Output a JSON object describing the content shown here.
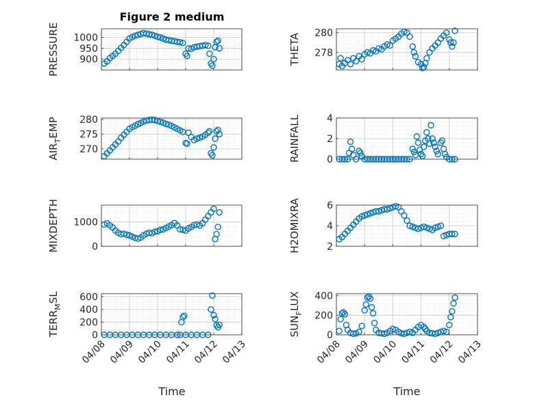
{
  "figure": {
    "title": "Figure 2 medium",
    "xlabel": "Time",
    "marker_color": "#0072BD",
    "x_tick_labels": [
      "04/08",
      "04/09",
      "04/10",
      "04/11",
      "04/12",
      "04/13"
    ]
  },
  "chart_data": [
    {
      "type": "scatter",
      "ylabel": "PRESSURE",
      "ylabel_sub": "",
      "ylim": [
        850,
        1040
      ],
      "yticks": [
        900,
        950,
        1000
      ],
      "xlim": [
        0,
        5
      ],
      "x": [
        0.1,
        0.2,
        0.3,
        0.4,
        0.5,
        0.6,
        0.7,
        0.8,
        0.9,
        1.0,
        1.1,
        1.2,
        1.3,
        1.4,
        1.5,
        1.6,
        1.7,
        1.8,
        1.9,
        2.0,
        2.1,
        2.2,
        2.3,
        2.4,
        2.5,
        2.6,
        2.7,
        2.8,
        2.9,
        3.0,
        3.05,
        3.1,
        3.2,
        3.3,
        3.4,
        3.5,
        3.6,
        3.7,
        3.8,
        3.85,
        3.9,
        3.95,
        4.0,
        4.05,
        4.1,
        4.15,
        4.2
      ],
      "y": [
        880,
        890,
        905,
        915,
        925,
        938,
        952,
        965,
        980,
        995,
        1002,
        1008,
        1012,
        1016,
        1020,
        1018,
        1015,
        1012,
        1008,
        1003,
        1000,
        995,
        990,
        988,
        985,
        983,
        980,
        978,
        975,
        925,
        915,
        950,
        948,
        955,
        958,
        960,
        962,
        965,
        962,
        925,
        880,
        870,
        900,
        955,
        980,
        985,
        950
      ]
    },
    {
      "type": "scatter",
      "ylabel": "THETA",
      "ylabel_sub": "",
      "ylim": [
        276.2,
        280.4
      ],
      "yticks": [
        278,
        280
      ],
      "xlim": [
        0,
        5
      ],
      "x": [
        0.1,
        0.15,
        0.2,
        0.3,
        0.4,
        0.5,
        0.6,
        0.7,
        0.8,
        0.9,
        1.0,
        1.1,
        1.2,
        1.3,
        1.4,
        1.5,
        1.6,
        1.7,
        1.8,
        1.9,
        2.0,
        2.1,
        2.2,
        2.3,
        2.4,
        2.5,
        2.6,
        2.7,
        2.75,
        2.8,
        2.9,
        3.0,
        3.05,
        3.1,
        3.15,
        3.2,
        3.3,
        3.4,
        3.5,
        3.6,
        3.7,
        3.8,
        3.9,
        4.0,
        4.05,
        4.1,
        4.15,
        4.2
      ],
      "y": [
        276.8,
        277.4,
        276.6,
        276.9,
        277.2,
        276.8,
        277.4,
        277.1,
        277.6,
        277.3,
        277.8,
        278.0,
        277.9,
        278.2,
        278.1,
        278.4,
        278.3,
        278.6,
        278.8,
        278.7,
        279.2,
        279.4,
        279.6,
        279.9,
        280.1,
        280.0,
        279.6,
        278.6,
        278.0,
        277.6,
        277.0,
        276.8,
        276.4,
        276.5,
        276.9,
        277.4,
        278.0,
        278.4,
        278.7,
        279.0,
        279.4,
        279.7,
        280.0,
        279.3,
        279.0,
        278.6,
        279.0,
        280.2
      ]
    },
    {
      "type": "scatter",
      "ylabel": "AIR",
      "ylabel_sub": "T",
      "ylabel_tail": "EMP",
      "ylim": [
        266.5,
        280.5
      ],
      "yticks": [
        270,
        275,
        280
      ],
      "xlim": [
        0,
        5
      ],
      "x": [
        0.1,
        0.2,
        0.3,
        0.4,
        0.5,
        0.6,
        0.7,
        0.8,
        0.9,
        1.0,
        1.1,
        1.2,
        1.3,
        1.4,
        1.5,
        1.6,
        1.7,
        1.8,
        1.9,
        2.0,
        2.1,
        2.2,
        2.3,
        2.4,
        2.5,
        2.6,
        2.7,
        2.8,
        2.9,
        3.0,
        3.05,
        3.1,
        3.2,
        3.3,
        3.4,
        3.5,
        3.6,
        3.7,
        3.8,
        3.85,
        3.9,
        3.95,
        4.0,
        4.05,
        4.1,
        4.15,
        4.2
      ],
      "y": [
        267.5,
        268.5,
        269.5,
        270.5,
        271.5,
        272.5,
        273.8,
        274.8,
        275.8,
        276.8,
        277.4,
        277.9,
        278.4,
        278.8,
        279.3,
        279.6,
        279.8,
        279.9,
        279.8,
        279.5,
        279.2,
        278.9,
        278.5,
        278.2,
        277.8,
        277.3,
        276.8,
        276.3,
        275.8,
        272.0,
        271.8,
        275.5,
        274.0,
        273.0,
        273.5,
        273.8,
        274.2,
        274.8,
        275.5,
        276.0,
        268.5,
        267.8,
        270.5,
        273.5,
        276.0,
        276.5,
        275.0
      ]
    },
    {
      "type": "scatter",
      "ylabel": "RAINFALL",
      "ylabel_sub": "",
      "ylim": [
        0,
        4
      ],
      "yticks": [
        0,
        2,
        4
      ],
      "xlim": [
        0,
        5
      ],
      "x": [
        0.1,
        0.2,
        0.3,
        0.4,
        0.45,
        0.5,
        0.55,
        0.6,
        0.7,
        0.8,
        0.85,
        0.9,
        1.0,
        1.1,
        1.2,
        1.3,
        1.4,
        1.5,
        1.6,
        1.7,
        1.8,
        1.9,
        2.0,
        2.1,
        2.2,
        2.3,
        2.4,
        2.5,
        2.6,
        2.7,
        2.75,
        2.8,
        2.85,
        2.9,
        2.95,
        3.0,
        3.05,
        3.1,
        3.15,
        3.2,
        3.25,
        3.3,
        3.35,
        3.4,
        3.45,
        3.5,
        3.55,
        3.6,
        3.7,
        3.75,
        3.8,
        3.85,
        3.9,
        4.0,
        4.1,
        4.2
      ],
      "y": [
        0,
        0,
        0,
        0,
        0.6,
        1.7,
        1.0,
        0.4,
        0,
        0.8,
        0.6,
        0.3,
        0,
        0,
        0,
        0,
        0,
        0,
        0,
        0,
        0,
        0,
        0,
        0,
        0,
        0,
        0,
        0,
        0,
        1.0,
        0.7,
        0.4,
        2.2,
        1.6,
        0.9,
        0.5,
        0.3,
        1.2,
        1.8,
        2.6,
        2.0,
        1.5,
        3.3,
        2.0,
        1.6,
        1.2,
        0.8,
        0.5,
        1.6,
        1.8,
        1.0,
        0.5,
        0.2,
        0,
        0,
        0
      ]
    },
    {
      "type": "scatter",
      "ylabel": "MIXDEPTH",
      "ylabel_sub": "",
      "ylim": [
        0,
        1700
      ],
      "yticks": [
        0,
        1000
      ],
      "xlim": [
        0,
        5
      ],
      "x": [
        0.1,
        0.2,
        0.3,
        0.4,
        0.5,
        0.6,
        0.7,
        0.8,
        0.9,
        1.0,
        1.1,
        1.2,
        1.3,
        1.4,
        1.5,
        1.6,
        1.7,
        1.8,
        1.9,
        2.0,
        2.1,
        2.2,
        2.3,
        2.4,
        2.5,
        2.6,
        2.7,
        2.8,
        2.9,
        3.0,
        3.1,
        3.2,
        3.3,
        3.4,
        3.5,
        3.6,
        3.7,
        3.8,
        3.9,
        4.0,
        4.05,
        4.1,
        4.15,
        4.2
      ],
      "y": [
        900,
        950,
        870,
        780,
        650,
        560,
        500,
        520,
        480,
        450,
        400,
        350,
        320,
        360,
        450,
        520,
        560,
        540,
        600,
        620,
        680,
        700,
        760,
        820,
        880,
        960,
        860,
        700,
        680,
        650,
        740,
        800,
        880,
        900,
        860,
        950,
        1100,
        1250,
        1400,
        1550,
        300,
        500,
        800,
        1400
      ]
    },
    {
      "type": "scatter",
      "ylabel": "H2OMIXRA",
      "ylabel_sub": "",
      "ylim": [
        2,
        6
      ],
      "yticks": [
        2,
        4,
        6
      ],
      "xlim": [
        0,
        5
      ],
      "x": [
        0.1,
        0.2,
        0.3,
        0.4,
        0.5,
        0.6,
        0.7,
        0.8,
        0.9,
        1.0,
        1.1,
        1.2,
        1.3,
        1.4,
        1.5,
        1.6,
        1.7,
        1.8,
        1.9,
        2.0,
        2.1,
        2.2,
        2.3,
        2.4,
        2.5,
        2.6,
        2.7,
        2.8,
        2.9,
        3.0,
        3.1,
        3.2,
        3.3,
        3.4,
        3.5,
        3.6,
        3.7,
        3.8,
        3.9,
        4.0,
        4.1,
        4.2
      ],
      "y": [
        2.7,
        2.9,
        3.2,
        3.5,
        3.8,
        4.1,
        4.4,
        4.7,
        4.9,
        5.0,
        5.1,
        5.2,
        5.3,
        5.4,
        5.4,
        5.5,
        5.6,
        5.6,
        5.7,
        5.8,
        5.9,
        5.8,
        5.4,
        5.0,
        4.5,
        4.0,
        3.9,
        3.8,
        3.7,
        3.8,
        3.9,
        3.8,
        3.7,
        3.6,
        3.8,
        3.9,
        4.0,
        3.0,
        3.1,
        3.2,
        3.2,
        3.2
      ]
    },
    {
      "type": "scatter",
      "ylabel": "TERR",
      "ylabel_sub": "M",
      "ylabel_tail": "SL",
      "ylim": [
        0,
        650
      ],
      "yticks": [
        0,
        200,
        400,
        600
      ],
      "xlim": [
        0,
        5
      ],
      "x": [
        0.1,
        0.3,
        0.5,
        0.7,
        0.9,
        1.1,
        1.3,
        1.5,
        1.7,
        1.9,
        2.1,
        2.3,
        2.5,
        2.7,
        2.8,
        2.85,
        2.9,
        2.95,
        3.0,
        3.2,
        3.4,
        3.6,
        3.8,
        3.9,
        3.95,
        4.0,
        4.05,
        4.1,
        4.15,
        4.2
      ],
      "y": [
        0,
        0,
        0,
        0,
        0,
        0,
        0,
        0,
        0,
        0,
        0,
        0,
        0,
        0,
        0,
        200,
        280,
        300,
        0,
        0,
        0,
        0,
        0,
        400,
        620,
        310,
        250,
        150,
        120,
        160
      ]
    },
    {
      "type": "scatter",
      "ylabel": "SUN",
      "ylabel_sub": "F",
      "ylabel_tail": "LUX",
      "ylim": [
        0,
        420
      ],
      "yticks": [
        0,
        200,
        400
      ],
      "xlim": [
        0,
        5
      ],
      "x": [
        0.1,
        0.15,
        0.2,
        0.25,
        0.3,
        0.35,
        0.4,
        0.5,
        0.6,
        0.7,
        0.8,
        0.9,
        1.0,
        1.05,
        1.1,
        1.15,
        1.2,
        1.25,
        1.3,
        1.35,
        1.4,
        1.5,
        1.6,
        1.7,
        1.8,
        1.9,
        2.0,
        2.1,
        2.2,
        2.3,
        2.4,
        2.5,
        2.6,
        2.7,
        2.8,
        2.9,
        3.0,
        3.1,
        3.15,
        3.2,
        3.3,
        3.4,
        3.5,
        3.6,
        3.7,
        3.8,
        3.9,
        4.0,
        4.05,
        4.1,
        4.15,
        4.2
      ],
      "y": [
        40,
        160,
        220,
        230,
        210,
        100,
        50,
        20,
        10,
        15,
        30,
        90,
        250,
        310,
        380,
        390,
        370,
        280,
        220,
        120,
        50,
        20,
        15,
        10,
        20,
        40,
        60,
        50,
        30,
        15,
        10,
        20,
        30,
        20,
        50,
        80,
        100,
        80,
        60,
        40,
        20,
        15,
        10,
        20,
        30,
        40,
        30,
        100,
        180,
        240,
        320,
        380
      ]
    }
  ]
}
